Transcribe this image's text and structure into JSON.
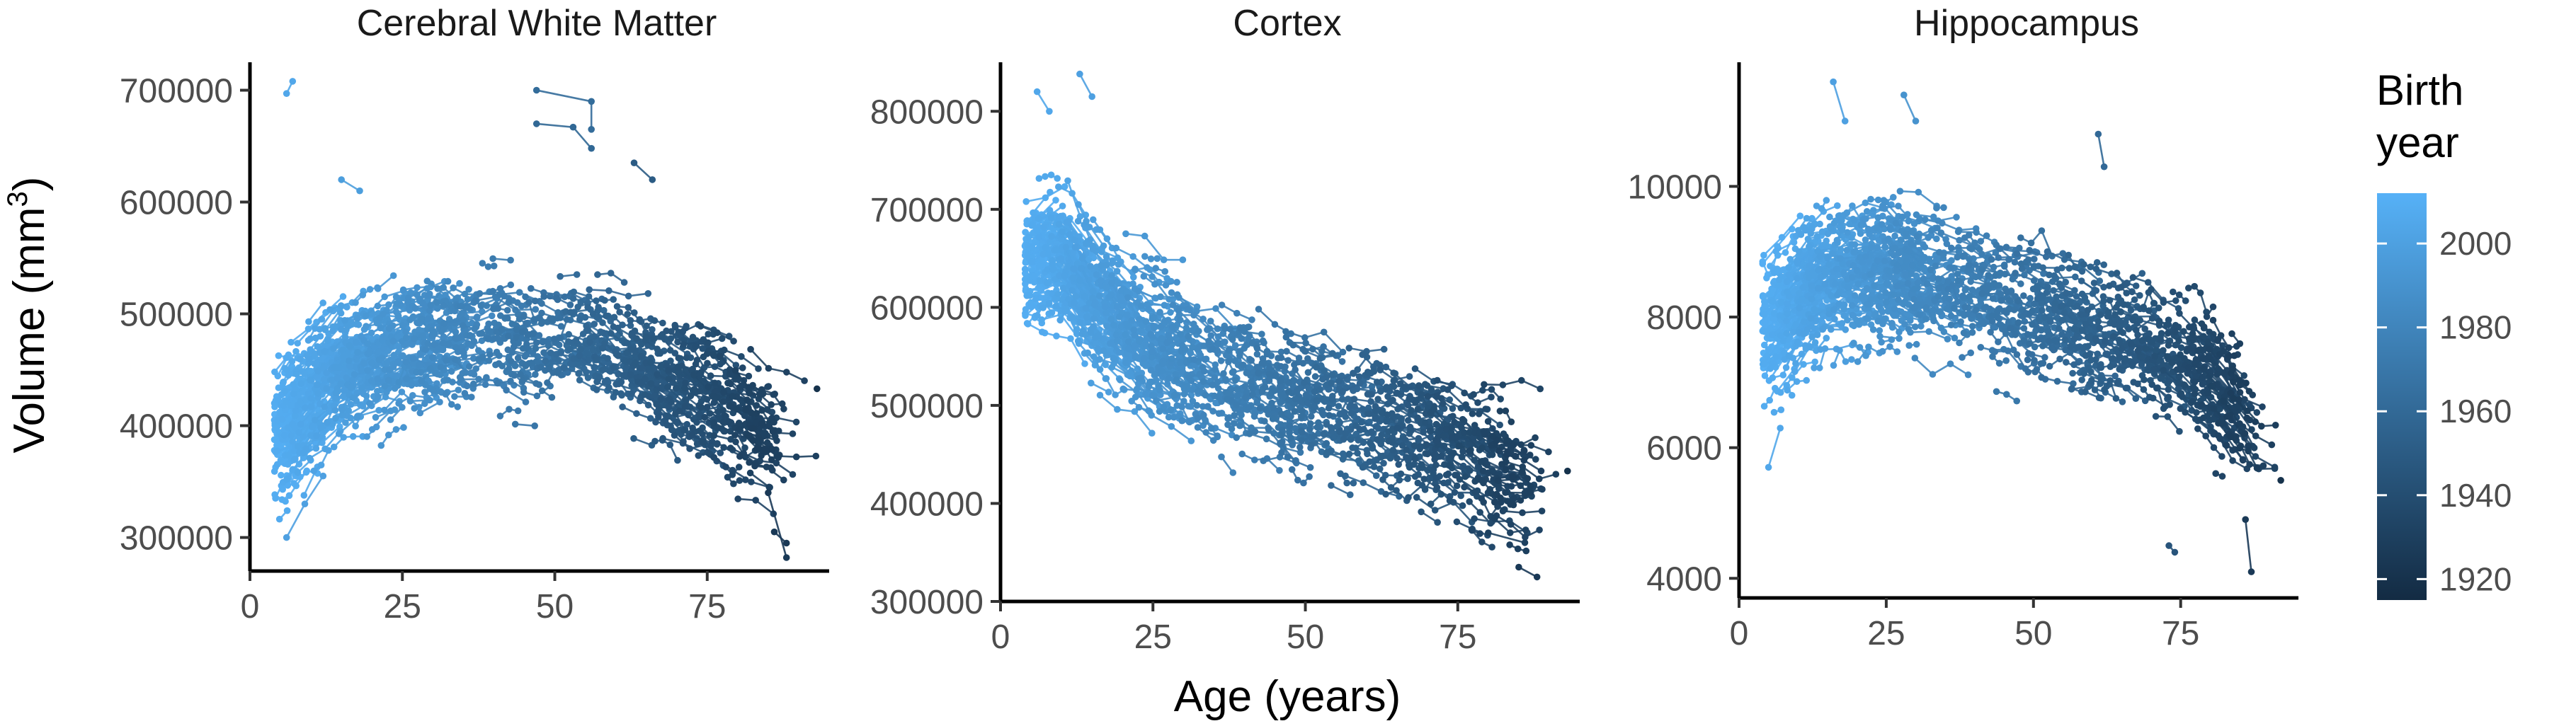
{
  "figure": {
    "y_axis_title": "Volume (mm",
    "y_axis_title_sup": "3",
    "y_axis_title_close": ")",
    "x_axis_title": "Age (years)",
    "legend": {
      "title_line1": "Birth",
      "title_line2": "year",
      "range": [
        1915,
        2012
      ],
      "ticks": [
        2000,
        1980,
        1960,
        1940,
        1920
      ],
      "colors": {
        "low": "#132B43",
        "high": "#56B1F7"
      }
    }
  },
  "chart_data": [
    {
      "type": "line",
      "title": "Cerebral White Matter",
      "xlim": [
        0,
        95
      ],
      "ylim": [
        270000,
        725000
      ],
      "x_ticks": [
        0,
        25,
        50,
        75
      ],
      "y_ticks": [
        300000,
        400000,
        500000,
        600000,
        700000
      ],
      "y_tick_labels": [
        "300000",
        "400000",
        "500000",
        "600000",
        "700000"
      ],
      "trend": [
        [
          5,
          400000
        ],
        [
          15,
          450000
        ],
        [
          25,
          470000
        ],
        [
          40,
          480000
        ],
        [
          55,
          470000
        ],
        [
          65,
          450000
        ],
        [
          75,
          425000
        ],
        [
          88,
          390000
        ]
      ],
      "series": [
        {
          "birth_year": 2005,
          "points": [
            [
              6,
              697000
            ],
            [
              7,
              708000
            ]
          ]
        },
        {
          "birth_year": 1962,
          "points": [
            [
              47,
              700000
            ],
            [
              56,
              690000
            ],
            [
              56,
              665000
            ]
          ]
        },
        {
          "birth_year": 1959,
          "points": [
            [
              47,
              670000
            ],
            [
              53,
              667000
            ],
            [
              56,
              648000
            ]
          ]
        },
        {
          "birth_year": 1950,
          "points": [
            [
              63,
              635000
            ],
            [
              66,
              620000
            ]
          ]
        },
        {
          "birth_year": 1925,
          "points": [
            [
              85,
              340000
            ],
            [
              88,
              282000
            ]
          ]
        },
        {
          "birth_year": 1925,
          "points": [
            [
              86,
              305000
            ],
            [
              88,
              295000
            ]
          ]
        },
        {
          "birth_year": 1920,
          "points": [
            [
              93,
              433000
            ]
          ]
        },
        {
          "birth_year": 2000,
          "points": [
            [
              6,
              300000
            ],
            [
              9,
              330000
            ],
            [
              12,
              355000
            ]
          ]
        },
        {
          "birth_year": 1998,
          "points": [
            [
              15,
              620000
            ],
            [
              18,
              610000
            ]
          ]
        }
      ]
    },
    {
      "type": "line",
      "title": "Cortex",
      "xlim": [
        0,
        95
      ],
      "ylim": [
        300000,
        850000
      ],
      "x_ticks": [
        0,
        25,
        50,
        75
      ],
      "y_ticks": [
        300000,
        400000,
        500000,
        600000,
        700000,
        800000
      ],
      "y_tick_labels": [
        "300000",
        "400000",
        "500000",
        "600000",
        "700000",
        "800000"
      ],
      "trend": [
        [
          5,
          640000
        ],
        [
          10,
          650000
        ],
        [
          15,
          610000
        ],
        [
          25,
          560000
        ],
        [
          40,
          520000
        ],
        [
          55,
          490000
        ],
        [
          70,
          470000
        ],
        [
          85,
          430000
        ]
      ],
      "series": [
        {
          "birth_year": 2005,
          "points": [
            [
              6,
              820000
            ],
            [
              8,
              800000
            ]
          ]
        },
        {
          "birth_year": 2000,
          "points": [
            [
              13,
              838000
            ],
            [
              15,
              815000
            ]
          ]
        },
        {
          "birth_year": 1920,
          "points": [
            [
              93,
              433000
            ]
          ]
        },
        {
          "birth_year": 1925,
          "points": [
            [
              85,
              335000
            ],
            [
              88,
              325000
            ]
          ]
        },
        {
          "birth_year": 1930,
          "points": [
            [
              80,
              370000
            ],
            [
              86,
              360000
            ]
          ]
        }
      ]
    },
    {
      "type": "line",
      "title": "Hippocampus",
      "xlim": [
        0,
        95
      ],
      "ylim": [
        3700,
        11900
      ],
      "x_ticks": [
        0,
        25,
        50,
        75
      ],
      "y_ticks": [
        4000,
        6000,
        8000,
        10000
      ],
      "y_tick_labels": [
        "4000",
        "6000",
        "8000",
        "10000"
      ],
      "trend": [
        [
          5,
          7800
        ],
        [
          10,
          8300
        ],
        [
          15,
          8600
        ],
        [
          25,
          8700
        ],
        [
          40,
          8400
        ],
        [
          55,
          8000
        ],
        [
          70,
          7600
        ],
        [
          80,
          7100
        ],
        [
          88,
          6300
        ]
      ],
      "series": [
        {
          "birth_year": 2000,
          "points": [
            [
              16,
              11600
            ],
            [
              18,
              11000
            ]
          ]
        },
        {
          "birth_year": 1990,
          "points": [
            [
              28,
              11400
            ],
            [
              30,
              11000
            ]
          ]
        },
        {
          "birth_year": 1960,
          "points": [
            [
              61,
              10800
            ],
            [
              62,
              10300
            ]
          ]
        },
        {
          "birth_year": 1945,
          "points": [
            [
              73,
              4500
            ],
            [
              74,
              4400
            ]
          ]
        },
        {
          "birth_year": 1925,
          "points": [
            [
              86,
              4900
            ],
            [
              87,
              4100
            ]
          ]
        },
        {
          "birth_year": 1920,
          "points": [
            [
              92,
              5500
            ]
          ]
        },
        {
          "birth_year": 2005,
          "points": [
            [
              5,
              5700
            ],
            [
              7,
              6300
            ]
          ]
        }
      ]
    }
  ]
}
